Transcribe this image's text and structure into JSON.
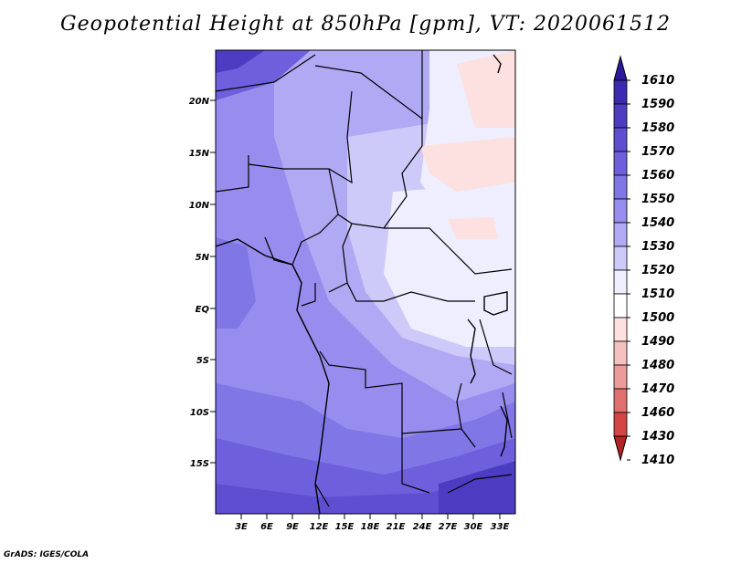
{
  "title": "Geopotential Height at 850hPa [gpm], VT: 2020061512",
  "credit": "GrADS: IGES/COLA",
  "map": {
    "lat_ticks": [
      "20N",
      "15N",
      "10N",
      "5N",
      "EQ",
      "5S",
      "10S",
      "15S"
    ],
    "lon_ticks": [
      "3E",
      "6E",
      "9E",
      "12E",
      "15E",
      "18E",
      "21E",
      "24E",
      "27E",
      "30E",
      "33E"
    ]
  },
  "colorbar": {
    "levels": [
      "1610",
      "1590",
      "1580",
      "1570",
      "1560",
      "1550",
      "1540",
      "1530",
      "1520",
      "1510",
      "1500",
      "1490",
      "1480",
      "1470",
      "1460",
      "1430",
      "1410"
    ],
    "colors": [
      "#2a1a9c",
      "#3b2bb0",
      "#4c3cc2",
      "#5e4ed0",
      "#6e60dc",
      "#8076e6",
      "#968dee",
      "#b0aaf4",
      "#cdcaf9",
      "#eeeeff",
      "#ffffff",
      "#fde0e0",
      "#f5c0c0",
      "#ec9a9a",
      "#e07070",
      "#d24646",
      "#b22222"
    ]
  }
}
